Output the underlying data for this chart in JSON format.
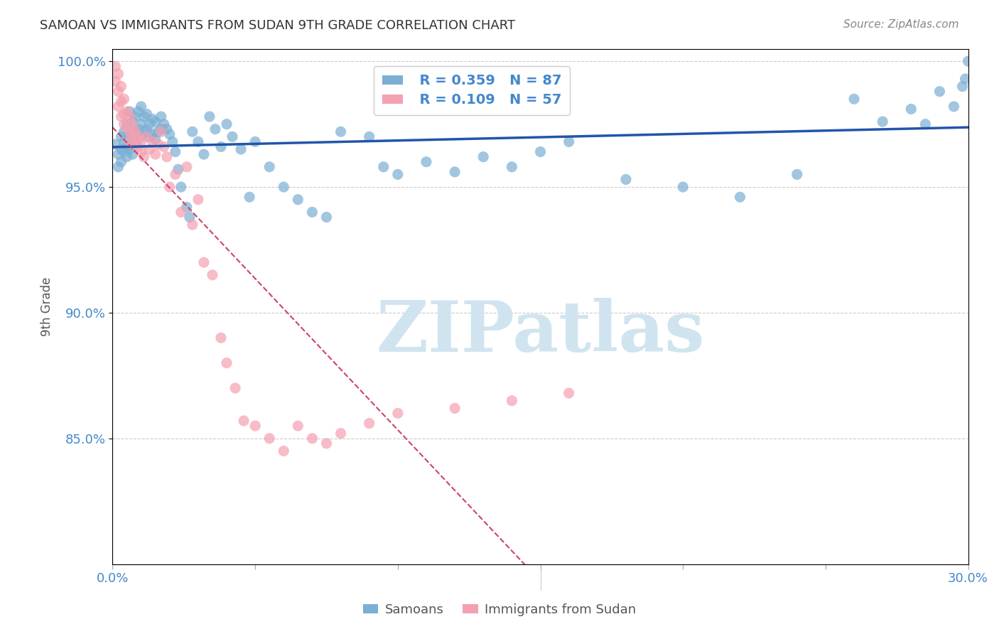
{
  "title": "SAMOAN VS IMMIGRANTS FROM SUDAN 9TH GRADE CORRELATION CHART",
  "source": "Source: ZipAtlas.com",
  "xlabel": "",
  "ylabel": "9th Grade",
  "xmin": 0.0,
  "xmax": 0.3,
  "ymin": 0.8,
  "ymax": 1.005,
  "yticks": [
    0.85,
    0.9,
    0.95,
    1.0
  ],
  "ytick_labels": [
    "85.0%",
    "90.0%",
    "95.0%",
    "100.0%"
  ],
  "xticks": [
    0.0,
    0.05,
    0.1,
    0.15,
    0.2,
    0.25,
    0.3
  ],
  "xtick_labels": [
    "0.0%",
    "",
    "",
    "",
    "",
    "",
    "30.0%"
  ],
  "legend_R_samoans": "R = 0.359",
  "legend_N_samoans": "N = 87",
  "legend_R_sudan": "R = 0.109",
  "legend_N_sudan": "N = 57",
  "samoans_color": "#7bafd4",
  "sudan_color": "#f4a0b0",
  "samoans_line_color": "#2255aa",
  "sudan_line_color": "#cc4466",
  "watermark_text": "ZIPatlas",
  "watermark_color": "#d0e4f0",
  "background_color": "#ffffff",
  "grid_color": "#cccccc",
  "title_color": "#333333",
  "axis_label_color": "#555555",
  "tick_label_color": "#4488cc",
  "samoans_x": [
    0.001,
    0.002,
    0.002,
    0.003,
    0.003,
    0.003,
    0.004,
    0.004,
    0.004,
    0.005,
    0.005,
    0.005,
    0.006,
    0.006,
    0.006,
    0.007,
    0.007,
    0.007,
    0.008,
    0.008,
    0.008,
    0.009,
    0.009,
    0.01,
    0.01,
    0.01,
    0.011,
    0.011,
    0.012,
    0.012,
    0.013,
    0.013,
    0.014,
    0.014,
    0.015,
    0.015,
    0.016,
    0.017,
    0.017,
    0.018,
    0.019,
    0.02,
    0.021,
    0.022,
    0.023,
    0.024,
    0.026,
    0.027,
    0.028,
    0.03,
    0.032,
    0.034,
    0.036,
    0.038,
    0.04,
    0.042,
    0.045,
    0.048,
    0.05,
    0.055,
    0.06,
    0.065,
    0.07,
    0.075,
    0.08,
    0.09,
    0.095,
    0.1,
    0.11,
    0.12,
    0.13,
    0.14,
    0.15,
    0.16,
    0.18,
    0.2,
    0.22,
    0.24,
    0.26,
    0.27,
    0.28,
    0.285,
    0.29,
    0.295,
    0.298,
    0.299,
    0.3
  ],
  "samoans_y": [
    0.967,
    0.963,
    0.958,
    0.97,
    0.965,
    0.96,
    0.968,
    0.972,
    0.964,
    0.975,
    0.966,
    0.962,
    0.98,
    0.971,
    0.965,
    0.976,
    0.969,
    0.963,
    0.978,
    0.972,
    0.967,
    0.98,
    0.973,
    0.982,
    0.975,
    0.97,
    0.978,
    0.972,
    0.979,
    0.973,
    0.975,
    0.97,
    0.977,
    0.971,
    0.976,
    0.969,
    0.972,
    0.978,
    0.973,
    0.975,
    0.973,
    0.971,
    0.968,
    0.964,
    0.957,
    0.95,
    0.942,
    0.938,
    0.972,
    0.968,
    0.963,
    0.978,
    0.973,
    0.966,
    0.975,
    0.97,
    0.965,
    0.946,
    0.968,
    0.958,
    0.95,
    0.945,
    0.94,
    0.938,
    0.972,
    0.97,
    0.958,
    0.955,
    0.96,
    0.956,
    0.962,
    0.958,
    0.964,
    0.968,
    0.953,
    0.95,
    0.946,
    0.955,
    0.985,
    0.976,
    0.981,
    0.975,
    0.988,
    0.982,
    0.99,
    0.993,
    1.0
  ],
  "sudan_x": [
    0.001,
    0.001,
    0.002,
    0.002,
    0.002,
    0.003,
    0.003,
    0.003,
    0.004,
    0.004,
    0.004,
    0.005,
    0.005,
    0.006,
    0.006,
    0.006,
    0.007,
    0.007,
    0.008,
    0.008,
    0.009,
    0.009,
    0.01,
    0.01,
    0.011,
    0.012,
    0.013,
    0.014,
    0.015,
    0.016,
    0.017,
    0.018,
    0.019,
    0.02,
    0.022,
    0.024,
    0.026,
    0.028,
    0.03,
    0.032,
    0.035,
    0.038,
    0.04,
    0.043,
    0.046,
    0.05,
    0.055,
    0.06,
    0.065,
    0.07,
    0.075,
    0.08,
    0.09,
    0.1,
    0.12,
    0.14,
    0.16
  ],
  "sudan_y": [
    0.998,
    0.992,
    0.995,
    0.988,
    0.982,
    0.99,
    0.984,
    0.978,
    0.985,
    0.979,
    0.975,
    0.98,
    0.974,
    0.978,
    0.972,
    0.968,
    0.975,
    0.97,
    0.972,
    0.967,
    0.97,
    0.966,
    0.968,
    0.964,
    0.962,
    0.97,
    0.965,
    0.968,
    0.963,
    0.967,
    0.972,
    0.966,
    0.962,
    0.95,
    0.955,
    0.94,
    0.958,
    0.935,
    0.945,
    0.92,
    0.915,
    0.89,
    0.88,
    0.87,
    0.857,
    0.855,
    0.85,
    0.845,
    0.855,
    0.85,
    0.848,
    0.852,
    0.856,
    0.86,
    0.862,
    0.865,
    0.868
  ]
}
